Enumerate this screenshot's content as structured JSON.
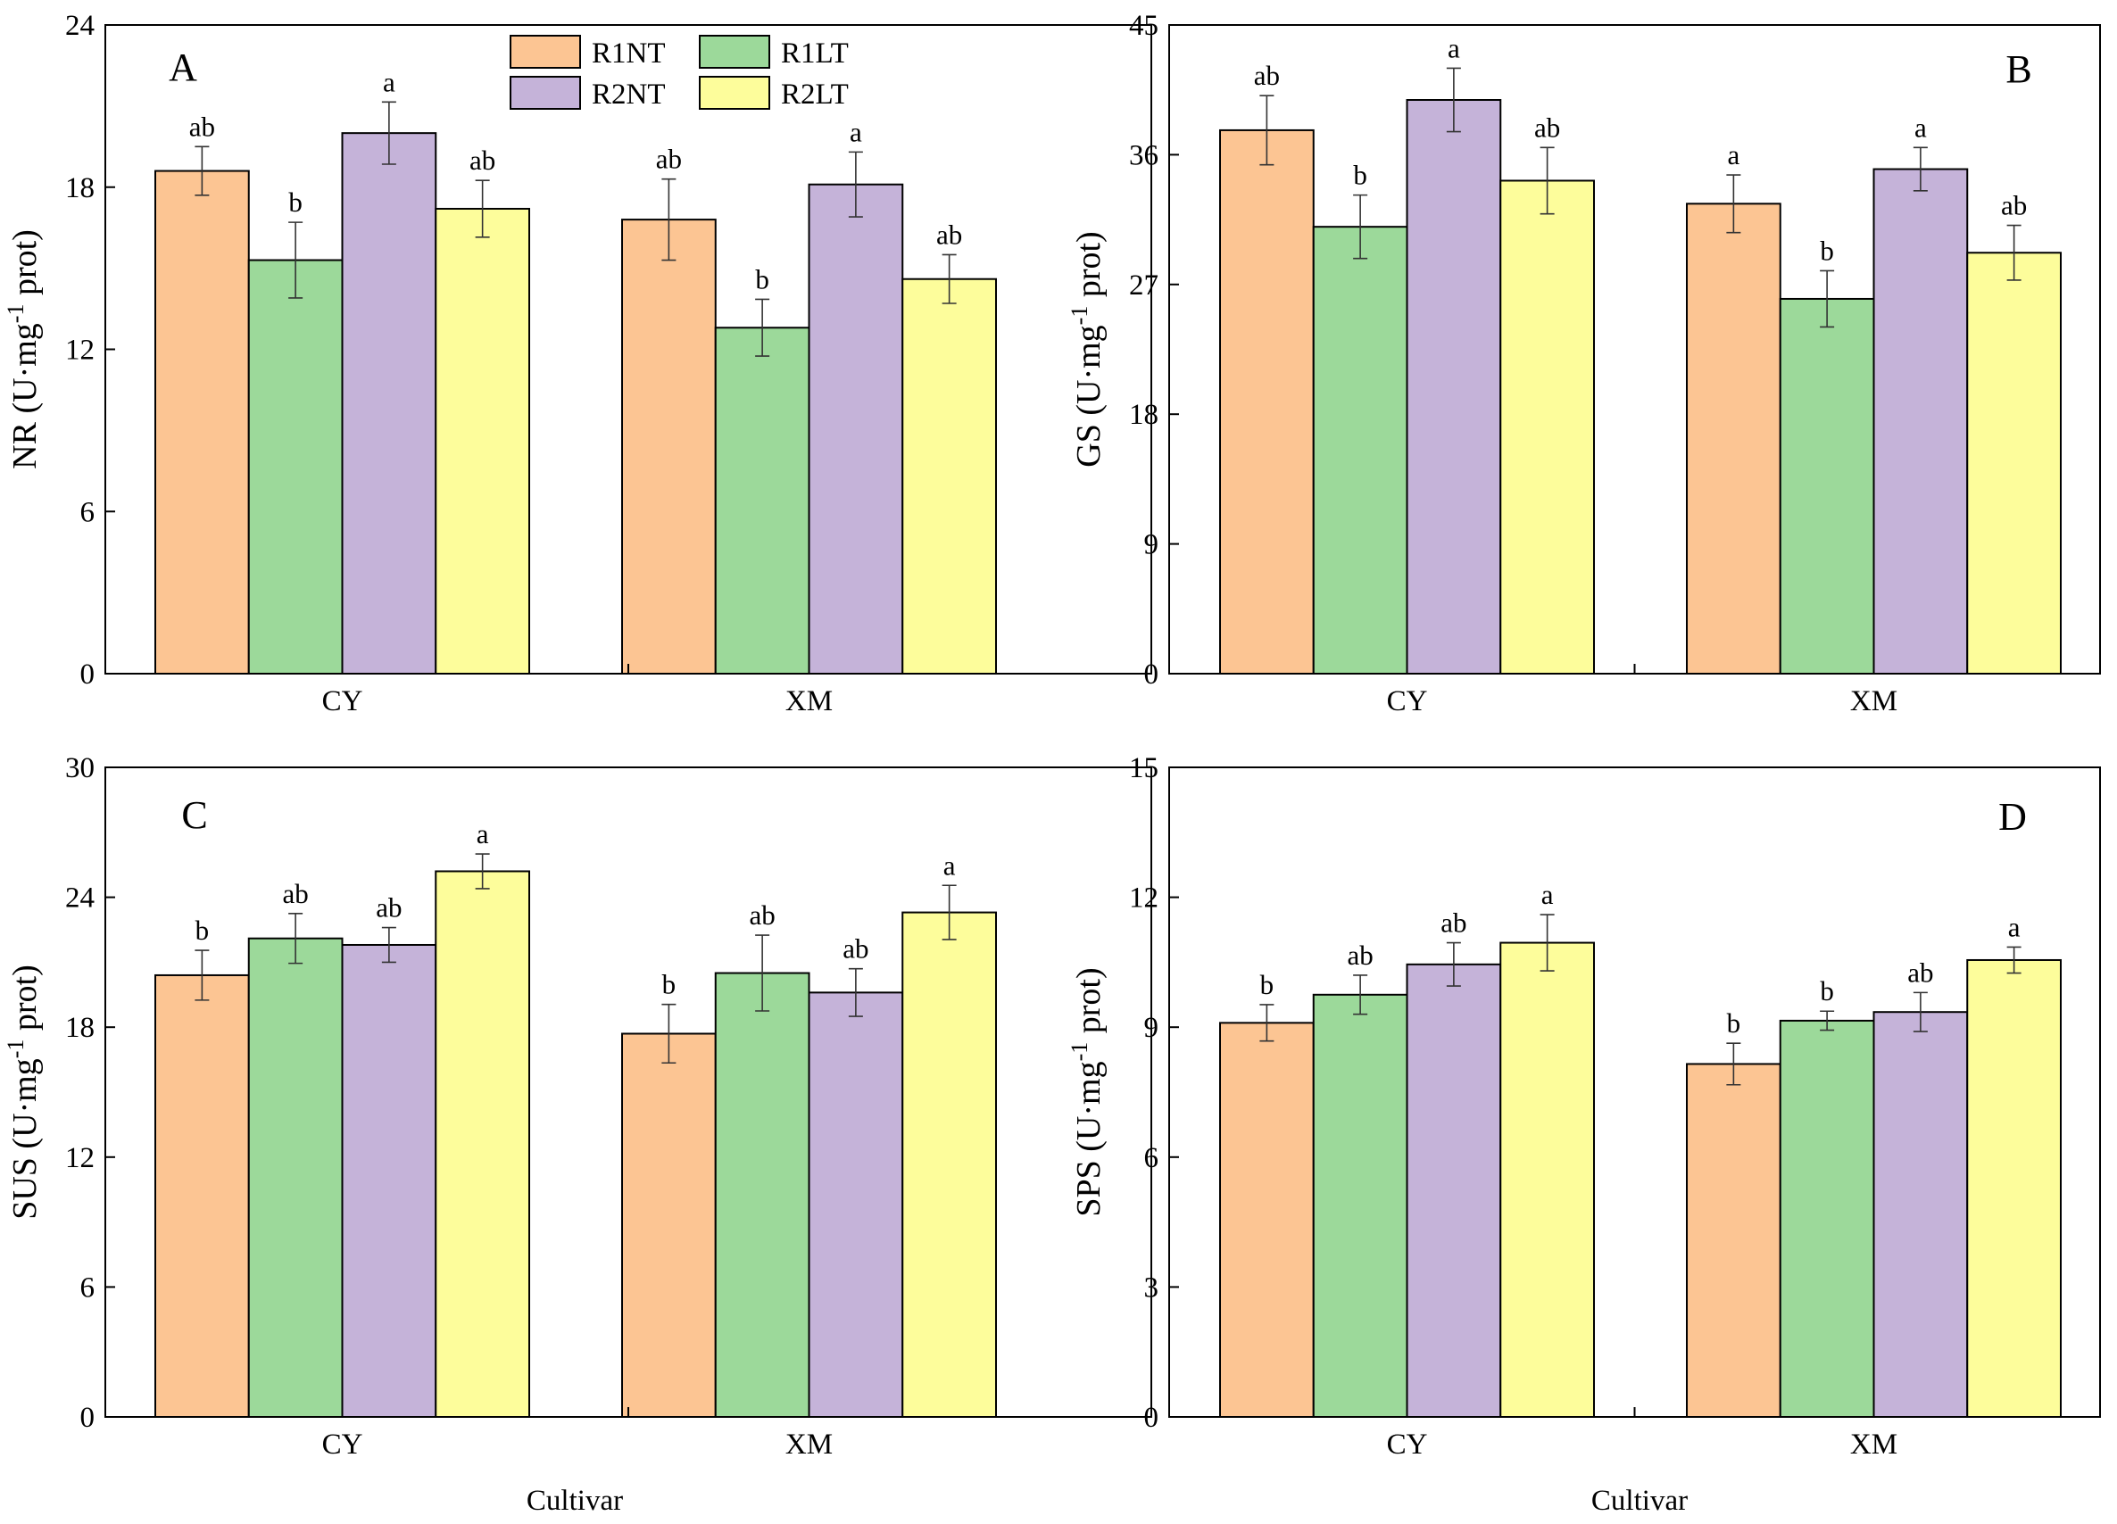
{
  "figure": {
    "x_title": "Cultivar",
    "y_unit_open": " (U·mg",
    "y_unit_sup": "-1",
    "y_unit_close": " prot)"
  },
  "legend": [
    {
      "label": "R1NT",
      "color": "#fcc593"
    },
    {
      "label": "R1LT",
      "color": "#9cd99a"
    },
    {
      "label": "R2NT",
      "color": "#c5b3d9"
    },
    {
      "label": "R2LT",
      "color": "#fdfd9b"
    }
  ],
  "colors": {
    "R1NT": "#fcc593",
    "R1LT": "#9cd99a",
    "R2NT": "#c5b3d9",
    "R2LT": "#fdfd9b",
    "edge": "#000000"
  },
  "chart_data": [
    {
      "type": "bar",
      "panel": "A",
      "ylabel": "NR",
      "categories": [
        "CY",
        "XM"
      ],
      "ylim": [
        0,
        24
      ],
      "yticks": [
        0,
        6,
        12,
        18,
        24
      ],
      "series": [
        {
          "name": "R1NT",
          "values": [
            18.6,
            16.8
          ],
          "errors": [
            0.9,
            1.5
          ],
          "labels": [
            "ab",
            "ab"
          ]
        },
        {
          "name": "R1LT",
          "values": [
            15.3,
            12.8
          ],
          "errors": [
            1.4,
            1.05
          ],
          "labels": [
            "b",
            "b"
          ]
        },
        {
          "name": "R2NT",
          "values": [
            20.0,
            18.1
          ],
          "errors": [
            1.15,
            1.2
          ],
          "labels": [
            "a",
            "a"
          ]
        },
        {
          "name": "R2LT",
          "values": [
            17.2,
            14.6
          ],
          "errors": [
            1.05,
            0.9
          ],
          "labels": [
            "ab",
            "ab"
          ]
        }
      ]
    },
    {
      "type": "bar",
      "panel": "B",
      "ylabel": "GS",
      "categories": [
        "CY",
        "XM"
      ],
      "ylim": [
        0,
        45
      ],
      "yticks": [
        0,
        9,
        18,
        27,
        36,
        45
      ],
      "series": [
        {
          "name": "R1NT",
          "values": [
            37.7,
            32.6
          ],
          "errors": [
            2.4,
            2.0
          ],
          "labels": [
            "ab",
            "a"
          ]
        },
        {
          "name": "R1LT",
          "values": [
            31.0,
            26.0
          ],
          "errors": [
            2.2,
            1.95
          ],
          "labels": [
            "b",
            "b"
          ]
        },
        {
          "name": "R2NT",
          "values": [
            39.8,
            35.0
          ],
          "errors": [
            2.2,
            1.5
          ],
          "labels": [
            "a",
            "a"
          ]
        },
        {
          "name": "R2LT",
          "values": [
            34.2,
            29.2
          ],
          "errors": [
            2.3,
            1.9
          ],
          "labels": [
            "ab",
            "ab"
          ]
        }
      ]
    },
    {
      "type": "bar",
      "panel": "C",
      "ylabel": "SUS",
      "categories": [
        "CY",
        "XM"
      ],
      "ylim": [
        0,
        30
      ],
      "yticks": [
        0,
        6,
        12,
        18,
        24,
        30
      ],
      "series": [
        {
          "name": "R1NT",
          "values": [
            20.4,
            17.7
          ],
          "errors": [
            1.15,
            1.35
          ],
          "labels": [
            "b",
            "b"
          ]
        },
        {
          "name": "R1LT",
          "values": [
            22.1,
            20.5
          ],
          "errors": [
            1.15,
            1.75
          ],
          "labels": [
            "ab",
            "ab"
          ]
        },
        {
          "name": "R2NT",
          "values": [
            21.8,
            19.6
          ],
          "errors": [
            0.8,
            1.1
          ],
          "labels": [
            "ab",
            "ab"
          ]
        },
        {
          "name": "R2LT",
          "values": [
            25.2,
            23.3
          ],
          "errors": [
            0.8,
            1.25
          ],
          "labels": [
            "a",
            "a"
          ]
        }
      ]
    },
    {
      "type": "bar",
      "panel": "D",
      "ylabel": "SPS",
      "categories": [
        "CY",
        "XM"
      ],
      "ylim": [
        0,
        15
      ],
      "yticks": [
        0,
        3,
        6,
        9,
        12,
        15
      ],
      "series": [
        {
          "name": "R1NT",
          "values": [
            9.1,
            8.15
          ],
          "errors": [
            0.42,
            0.48
          ],
          "labels": [
            "b",
            "b"
          ]
        },
        {
          "name": "R1LT",
          "values": [
            9.75,
            9.15
          ],
          "errors": [
            0.45,
            0.22
          ],
          "labels": [
            "ab",
            "b"
          ]
        },
        {
          "name": "R2NT",
          "values": [
            10.45,
            9.35
          ],
          "errors": [
            0.5,
            0.45
          ],
          "labels": [
            "ab",
            "ab"
          ]
        },
        {
          "name": "R2LT",
          "values": [
            10.95,
            10.55
          ],
          "errors": [
            0.65,
            0.3
          ],
          "labels": [
            "a",
            "a"
          ]
        }
      ]
    }
  ]
}
